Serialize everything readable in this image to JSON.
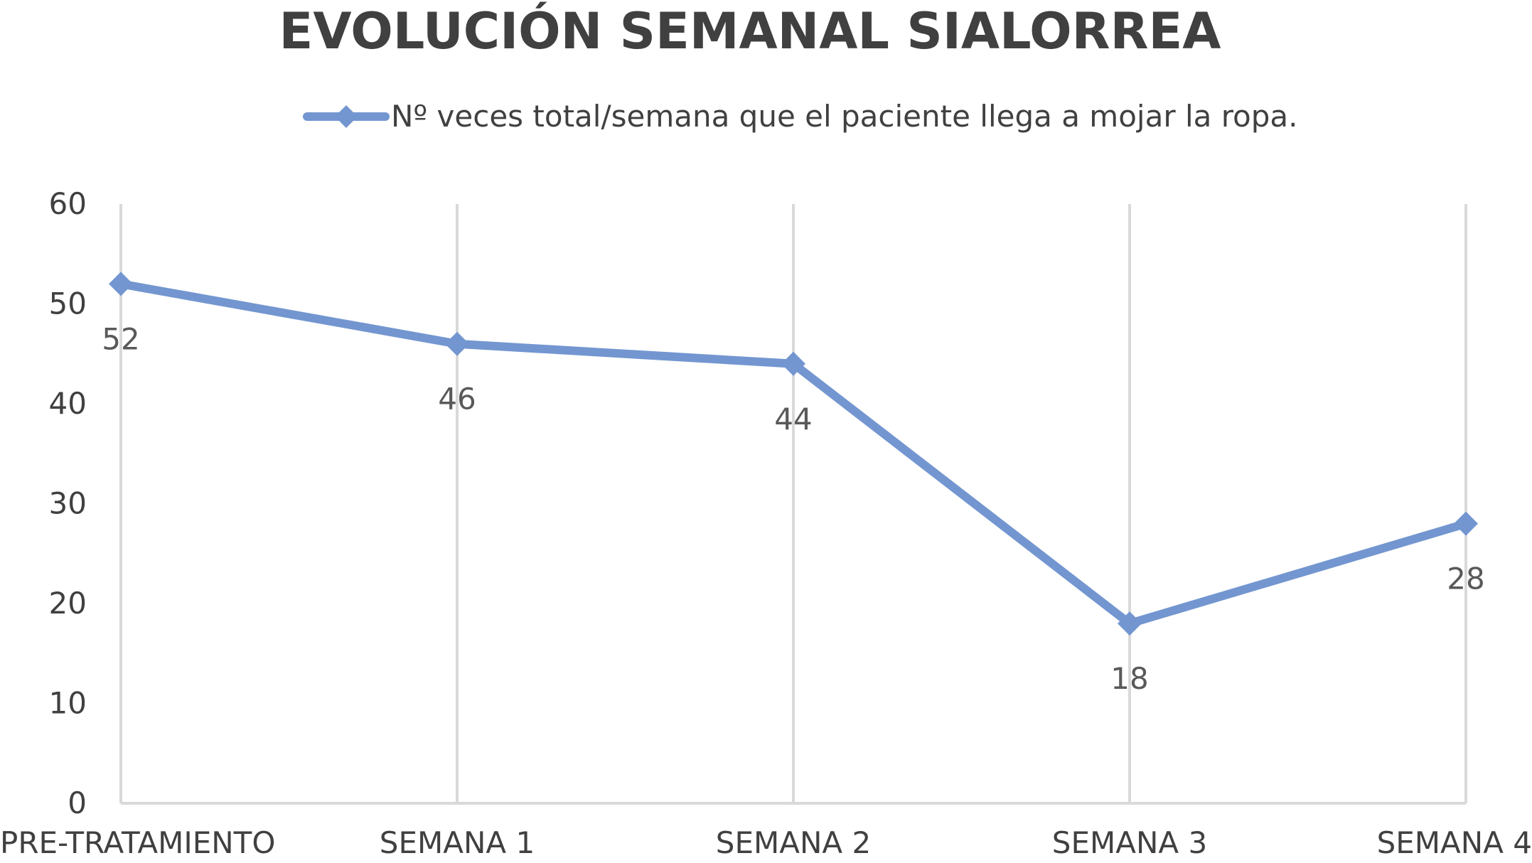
{
  "chart_data": {
    "type": "line",
    "title": "EVOLUCIÓN SEMANAL SIALORREA",
    "categories": [
      "PRE-TRATAMIENTO",
      "SEMANA 1",
      "SEMANA 2",
      "SEMANA 3",
      "SEMANA 4"
    ],
    "series": [
      {
        "name": "Nº veces total/semana que el paciente llega a mojar la ropa.",
        "values": [
          52,
          46,
          44,
          18,
          28
        ],
        "color": "#7396d0"
      }
    ],
    "ylim": [
      0,
      60
    ],
    "yticks": [
      0,
      10,
      20,
      30,
      40,
      50,
      60
    ],
    "xlabel": "",
    "ylabel": "",
    "grid": "vertical",
    "legend_position": "top",
    "data_labels": true,
    "marker": "diamond"
  }
}
